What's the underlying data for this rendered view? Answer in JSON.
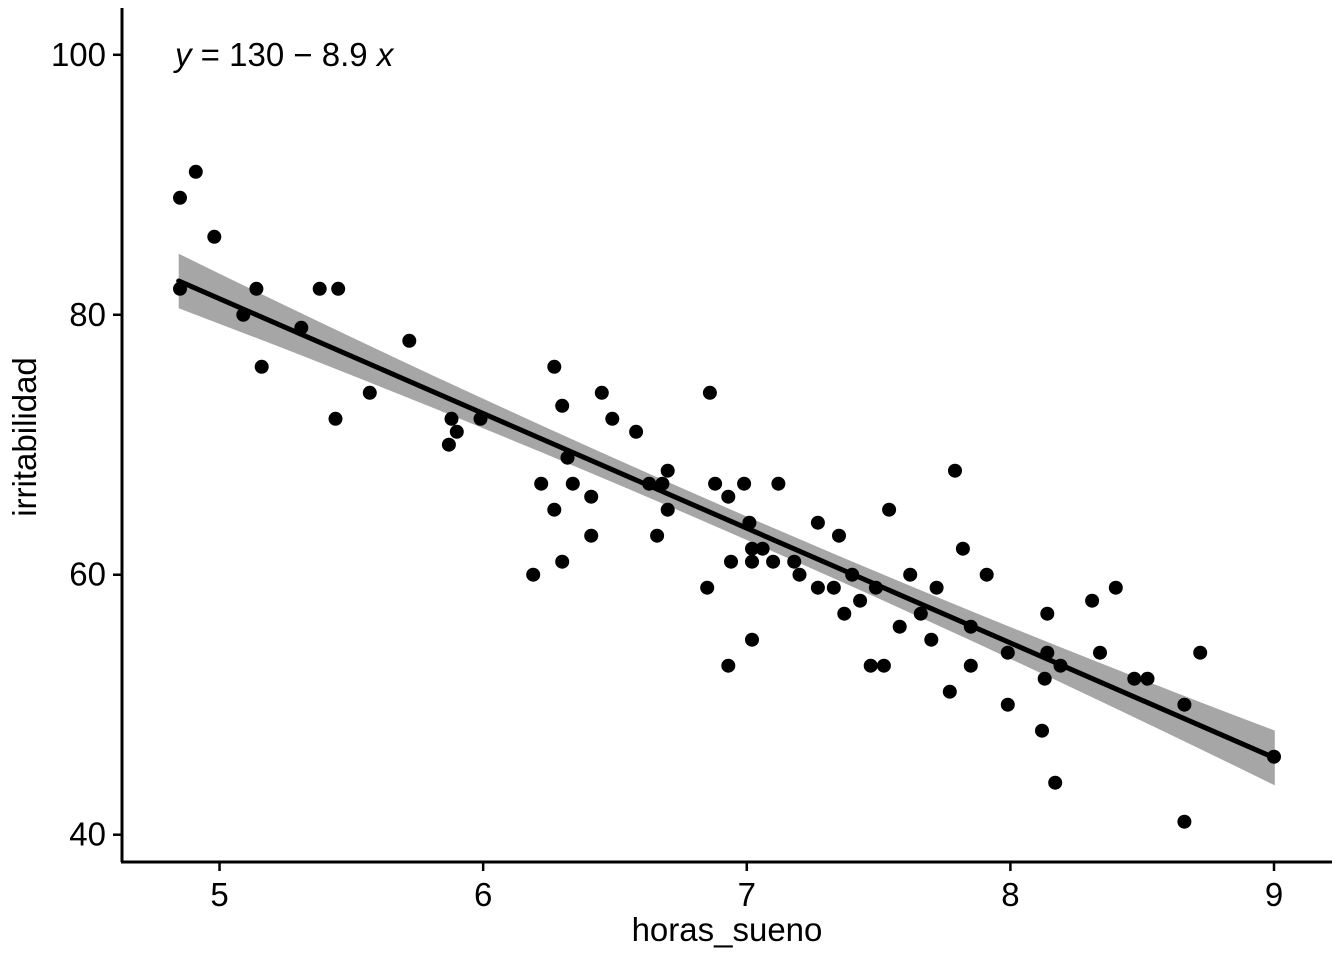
{
  "chart_data": {
    "type": "scatter",
    "title": "",
    "xlabel": "horas_sueno",
    "ylabel": "irritabilidad",
    "annotation": "y = 130 − 8.9 x",
    "annotation_parts": [
      {
        "text": "y",
        "style": "italic"
      },
      {
        "text": " = 130 − 8.9 ",
        "style": "normal"
      },
      {
        "text": "x",
        "style": "italic"
      }
    ],
    "x_ticks": [
      5,
      6,
      7,
      8,
      9
    ],
    "y_ticks": [
      40,
      60,
      80,
      100
    ],
    "xlim": [
      4.63,
      9.22
    ],
    "ylim": [
      37.9,
      103.6
    ],
    "grid": false,
    "legend": "none",
    "points": [
      [
        4.85,
        82
      ],
      [
        4.85,
        89
      ],
      [
        4.91,
        91
      ],
      [
        4.98,
        86
      ],
      [
        5.09,
        80
      ],
      [
        5.14,
        82
      ],
      [
        5.16,
        76
      ],
      [
        5.31,
        79
      ],
      [
        5.38,
        82
      ],
      [
        5.44,
        72
      ],
      [
        5.45,
        82
      ],
      [
        5.57,
        74
      ],
      [
        5.72,
        78
      ],
      [
        5.87,
        70
      ],
      [
        5.88,
        72
      ],
      [
        5.9,
        71
      ],
      [
        5.99,
        72
      ],
      [
        6.19,
        60
      ],
      [
        6.22,
        67
      ],
      [
        6.27,
        76
      ],
      [
        6.27,
        65
      ],
      [
        6.3,
        73
      ],
      [
        6.3,
        61
      ],
      [
        6.32,
        69
      ],
      [
        6.34,
        67
      ],
      [
        6.41,
        66
      ],
      [
        6.41,
        63
      ],
      [
        6.45,
        74
      ],
      [
        6.49,
        72
      ],
      [
        6.58,
        71
      ],
      [
        6.63,
        67
      ],
      [
        6.66,
        63
      ],
      [
        6.68,
        67
      ],
      [
        6.7,
        68
      ],
      [
        6.7,
        65
      ],
      [
        6.85,
        59
      ],
      [
        6.86,
        74
      ],
      [
        6.88,
        67
      ],
      [
        6.93,
        66
      ],
      [
        6.93,
        53
      ],
      [
        6.94,
        61
      ],
      [
        6.99,
        67
      ],
      [
        7.01,
        64
      ],
      [
        7.02,
        62
      ],
      [
        7.02,
        61
      ],
      [
        7.02,
        55
      ],
      [
        7.06,
        62
      ],
      [
        7.1,
        61
      ],
      [
        7.12,
        67
      ],
      [
        7.18,
        61
      ],
      [
        7.2,
        60
      ],
      [
        7.27,
        64
      ],
      [
        7.27,
        59
      ],
      [
        7.33,
        59
      ],
      [
        7.35,
        63
      ],
      [
        7.37,
        57
      ],
      [
        7.4,
        60
      ],
      [
        7.43,
        58
      ],
      [
        7.47,
        53
      ],
      [
        7.49,
        59
      ],
      [
        7.52,
        53
      ],
      [
        7.54,
        65
      ],
      [
        7.58,
        56
      ],
      [
        7.62,
        60
      ],
      [
        7.66,
        57
      ],
      [
        7.7,
        55
      ],
      [
        7.72,
        59
      ],
      [
        7.77,
        51
      ],
      [
        7.79,
        68
      ],
      [
        7.82,
        62
      ],
      [
        7.85,
        56
      ],
      [
        7.85,
        53
      ],
      [
        7.91,
        60
      ],
      [
        7.99,
        54
      ],
      [
        7.99,
        50
      ],
      [
        8.12,
        48
      ],
      [
        8.13,
        52
      ],
      [
        8.14,
        57
      ],
      [
        8.14,
        54
      ],
      [
        8.17,
        44
      ],
      [
        8.19,
        53
      ],
      [
        8.31,
        58
      ],
      [
        8.34,
        54
      ],
      [
        8.4,
        59
      ],
      [
        8.47,
        52
      ],
      [
        8.52,
        52
      ],
      [
        8.66,
        50
      ],
      [
        8.66,
        41
      ],
      [
        8.72,
        54
      ],
      [
        9.0,
        46
      ]
    ],
    "regression_line": {
      "x1": 4.845,
      "y1": 82.6,
      "x2": 9.003,
      "y2": 45.9
    },
    "ci_band": {
      "half_width_center": 0.9,
      "half_width_edge": 2.1,
      "x_center": 6.92
    },
    "colors": {
      "point": "#000000",
      "line": "#000000",
      "band": "#a6a6a6",
      "axis": "#000000",
      "text": "#000000",
      "background": "#ffffff"
    }
  }
}
